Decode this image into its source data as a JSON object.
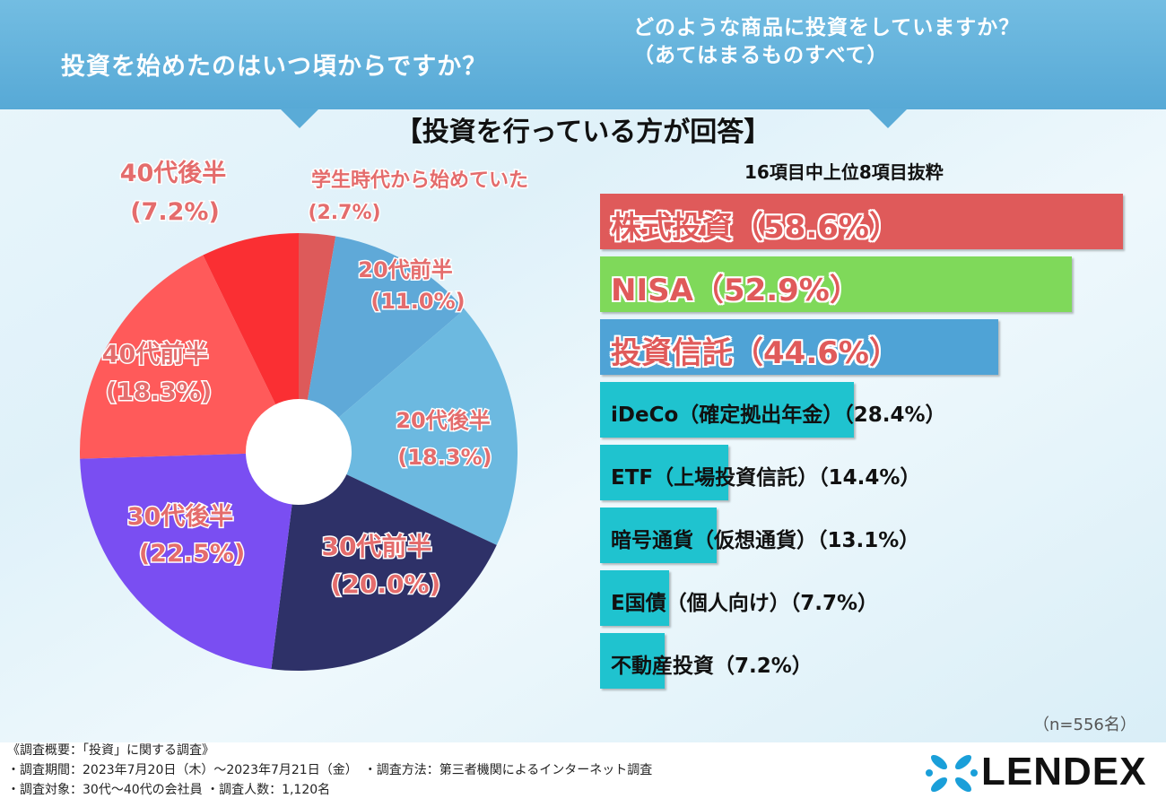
{
  "header": {
    "left_question": "投資を始めたのはいつ頃からですか？",
    "right_question_line1": "どのような商品に投資をしていますか？",
    "right_question_line2": "（あてはまるものすべて）"
  },
  "subtitle": "【投資を行っている方が回答】",
  "bar_note": "16項目中上位8項目抜粋",
  "sample_note": "（n=556名）",
  "footer": {
    "line1": "《調査概要：「投資」に関する調査》",
    "line2": "・調査期間：2023年7月20日（木）～2023年7月21日（金）　・調査方法：第三者機関によるインターネット調査",
    "line3": "・調査対象：30代～40代の会社員 ・調査人数：1,120名"
  },
  "logo": {
    "text": "LENDEX"
  },
  "colors": {
    "header": "#5aabd7",
    "pie": [
      "#dd5a5a",
      "#5fa9d8",
      "#6cb9e0",
      "#2e3168",
      "#7a4ef2",
      "#ff5a5a",
      "#fa2f33"
    ],
    "bars": [
      "#df5a5a",
      "#7fd95a",
      "#4fa3d6",
      "#1fc3cf",
      "#1fc3cf",
      "#1fc3cf",
      "#1fc3cf",
      "#1fc3cf"
    ]
  },
  "chart_data": [
    {
      "type": "pie",
      "title": "投資を始めたのはいつ頃からですか？",
      "categories": [
        "学生時代から始めていた",
        "20代前半",
        "20代後半",
        "30代前半",
        "30代後半",
        "40代前半",
        "40代後半"
      ],
      "labels": [
        "(2.7%)",
        "(11.0%)",
        "(18.3%)",
        "(20.0%)",
        "(22.5%)",
        "(18.3%)",
        "(7.2%)"
      ],
      "values": [
        2.7,
        11.0,
        18.3,
        20.0,
        22.5,
        18.3,
        7.2
      ],
      "donut": true
    },
    {
      "type": "bar",
      "orientation": "horizontal",
      "title": "どのような商品に投資をしていますか？",
      "categories": [
        "株式投資",
        "NISA",
        "投資信託",
        "iDeCo（確定拠出年金）",
        "ETF（上場投資信託）",
        "暗号通貨（仮想通貨）",
        "E国債（個人向け）",
        "不動産投資"
      ],
      "labels": [
        "株式投資（58.6%）",
        "NISA（52.9%）",
        "投資信託（44.6%）",
        "iDeCo（確定拠出年金）（28.4%）",
        "ETF（上場投資信託）（14.4%）",
        "暗号通貨（仮想通貨）（13.1%）",
        "E国債（個人向け）（7.7%）",
        "不動産投資（7.2%）"
      ],
      "values": [
        58.6,
        52.9,
        44.6,
        28.4,
        14.4,
        13.1,
        7.7,
        7.2
      ],
      "unit": "%"
    }
  ]
}
